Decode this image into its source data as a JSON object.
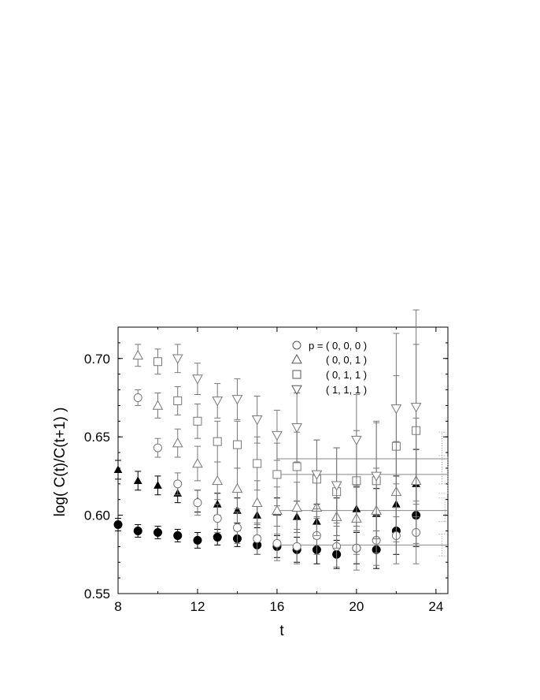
{
  "chart_data": {
    "type": "scatter",
    "xlabel": "t",
    "ylabel": "log( C(t)/C(t+1) )",
    "xlim": [
      8,
      24.6
    ],
    "ylim": [
      0.55,
      0.72
    ],
    "xticks": [
      8,
      12,
      16,
      20,
      24
    ],
    "xtick_labels": [
      "8",
      "12",
      "16",
      "20",
      "24"
    ],
    "yticks": [
      0.55,
      0.6,
      0.65,
      0.7
    ],
    "ytick_labels": [
      "0.55",
      "0.60",
      "0.65",
      "0.70"
    ],
    "grid": false,
    "legend_position": "top-right",
    "legend": [
      {
        "label": "p = ( 0, 0, 0 )",
        "marker": "circle-open"
      },
      {
        "label": "( 0, 0, 1 )",
        "marker": "triangle-up-open"
      },
      {
        "label": "( 0, 1, 1 )",
        "marker": "square-open"
      },
      {
        "label": "( 1, 1, 1 )",
        "marker": "triangle-down-open"
      }
    ],
    "series": [
      {
        "marker": "circle-filled",
        "color": "#000000",
        "x": [
          8,
          9,
          10,
          11,
          12,
          13,
          14,
          15,
          16,
          17,
          18,
          19,
          20,
          21,
          22,
          23
        ],
        "y": [
          0.594,
          0.59,
          0.589,
          0.587,
          0.584,
          0.586,
          0.585,
          0.581,
          0.58,
          0.578,
          0.578,
          0.575,
          0.579,
          0.578,
          0.59,
          0.6
        ],
        "err": [
          0.004,
          0.004,
          0.004,
          0.004,
          0.005,
          0.005,
          0.005,
          0.006,
          0.007,
          0.008,
          0.009,
          0.009,
          0.01,
          0.012,
          0.015,
          0.02
        ]
      },
      {
        "marker": "triangle-up-filled",
        "color": "#000000",
        "x": [
          8,
          9,
          10,
          11,
          12,
          13,
          14,
          15,
          16,
          17,
          18,
          19,
          20,
          21,
          22,
          23
        ],
        "y": [
          0.629,
          0.622,
          0.619,
          0.614,
          0.609,
          0.607,
          0.603,
          0.6,
          0.602,
          0.599,
          0.596,
          0.599,
          0.604,
          0.601,
          0.607,
          0.62
        ],
        "err": [
          0.006,
          0.006,
          0.006,
          0.006,
          0.007,
          0.007,
          0.008,
          0.008,
          0.009,
          0.01,
          0.011,
          0.012,
          0.014,
          0.016,
          0.018,
          0.022
        ]
      },
      {
        "name": "p = ( 0, 0, 0 )",
        "marker": "circle-open",
        "color": "#777777",
        "x": [
          9,
          10,
          11,
          12,
          13,
          14,
          15,
          16,
          17,
          18,
          19,
          20,
          21,
          22,
          23
        ],
        "y": [
          0.675,
          0.643,
          0.62,
          0.608,
          0.598,
          0.592,
          0.585,
          0.582,
          0.58,
          0.587,
          0.58,
          0.579,
          0.584,
          0.587,
          0.589
        ],
        "err": [
          0.005,
          0.006,
          0.007,
          0.008,
          0.009,
          0.01,
          0.01,
          0.011,
          0.011,
          0.012,
          0.013,
          0.014,
          0.016,
          0.018,
          0.02
        ]
      },
      {
        "name": "( 0, 0, 1 )",
        "marker": "triangle-up-open",
        "color": "#777777",
        "x": [
          9,
          10,
          11,
          12,
          13,
          14,
          15,
          16,
          17,
          18,
          19,
          20,
          21,
          22,
          23
        ],
        "y": [
          0.702,
          0.67,
          0.646,
          0.633,
          0.622,
          0.617,
          0.608,
          0.603,
          0.605,
          0.605,
          0.599,
          0.598,
          0.603,
          0.615,
          0.622
        ],
        "err": [
          0.007,
          0.008,
          0.009,
          0.011,
          0.012,
          0.013,
          0.014,
          0.015,
          0.016,
          0.018,
          0.02,
          0.023,
          0.027,
          0.032,
          0.04
        ]
      },
      {
        "name": "( 0, 1, 1 )",
        "marker": "square-open",
        "color": "#777777",
        "x": [
          10,
          11,
          12,
          13,
          14,
          15,
          16,
          17,
          18,
          19,
          20,
          21,
          22,
          23
        ],
        "y": [
          0.698,
          0.673,
          0.66,
          0.647,
          0.645,
          0.633,
          0.626,
          0.631,
          0.623,
          0.615,
          0.622,
          0.622,
          0.644,
          0.654
        ],
        "err": [
          0.008,
          0.009,
          0.011,
          0.013,
          0.015,
          0.017,
          0.02,
          0.022,
          0.025,
          0.028,
          0.032,
          0.037,
          0.045,
          0.055
        ]
      },
      {
        "name": "( 1, 1, 1 )",
        "marker": "triangle-down-open",
        "color": "#777777",
        "x": [
          11,
          12,
          13,
          14,
          15,
          16,
          17,
          18,
          19,
          20,
          21,
          22,
          23
        ],
        "y": [
          0.7,
          0.687,
          0.673,
          0.674,
          0.661,
          0.651,
          0.656,
          0.626,
          0.619,
          0.648,
          0.625,
          0.668,
          0.669
        ],
        "err": [
          0.009,
          0.01,
          0.011,
          0.013,
          0.015,
          0.016,
          0.022,
          0.022,
          0.024,
          0.029,
          0.035,
          0.048,
          0.062
        ]
      }
    ],
    "fit_lines": {
      "x_range": [
        16,
        23
      ],
      "y": [
        0.581,
        0.603,
        0.626,
        0.636
      ],
      "color": "#888888"
    },
    "fit_error_bands": {
      "x": [
        24.3,
        24.45,
        24.6
      ],
      "color": "#999999",
      "intervals": [
        [
          0.574,
          0.588
        ],
        [
          0.596,
          0.611
        ],
        [
          0.614,
          0.638
        ],
        [
          0.62,
          0.653
        ]
      ]
    }
  }
}
